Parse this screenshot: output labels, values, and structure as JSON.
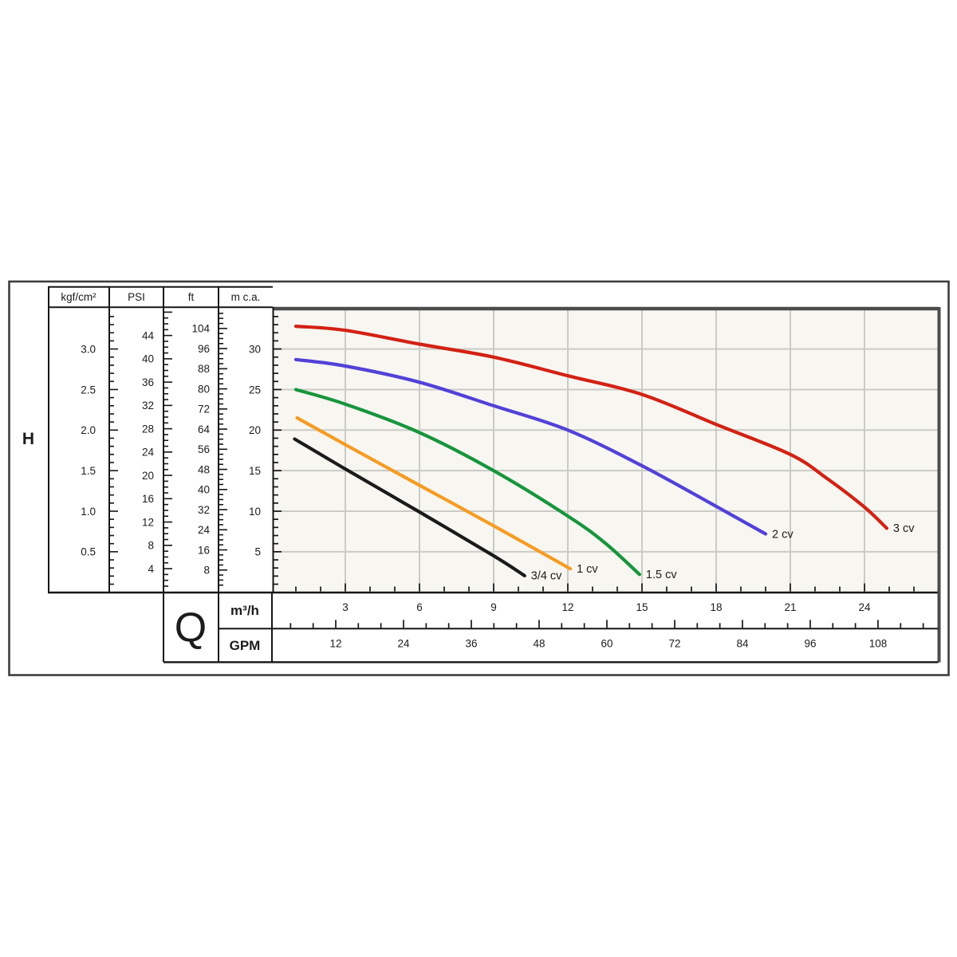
{
  "figure": {
    "head_symbol": "H",
    "flow_symbol": "Q"
  },
  "chart_data": {
    "type": "line",
    "x_axis": {
      "label": "m³/h",
      "ticks": [
        3,
        6,
        9,
        12,
        15,
        18,
        21,
        24
      ],
      "minor_step": 1,
      "range": [
        0,
        27
      ]
    },
    "x_axis_secondary": {
      "label": "GPM",
      "ticks": [
        12,
        24,
        36,
        48,
        60,
        72,
        84,
        96,
        108
      ],
      "minor_step": 4,
      "range": [
        0,
        119
      ]
    },
    "y_axis": {
      "label": "m c.a.",
      "ticks": [
        5,
        10,
        15,
        20,
        25,
        30
      ],
      "minor_step": 1,
      "range": [
        0,
        35
      ]
    },
    "grid": "on",
    "left_scales": [
      {
        "header": "kgf/cm²",
        "labels": [
          "3.0",
          "2.5",
          "2.0",
          "1.5",
          "1.0",
          "0.5"
        ],
        "minor_step": 0.1,
        "major_step": 0.5,
        "max": 3.5
      },
      {
        "header": "PSI",
        "labels": [
          44,
          40,
          36,
          32,
          28,
          24,
          20,
          16,
          12,
          8,
          4
        ],
        "minor_step": 1,
        "major_step": 4,
        "max": 50
      },
      {
        "header": "ft",
        "labels": [
          104,
          96,
          88,
          80,
          72,
          64,
          56,
          48,
          40,
          32,
          24,
          16,
          8
        ],
        "minor_step": 2,
        "major_step": 8,
        "max": 114
      },
      {
        "header": "m c.a.",
        "labels": [
          30,
          25,
          20,
          15,
          10,
          5
        ],
        "minor_step": 1,
        "major_step": 5,
        "max": 35
      }
    ],
    "series": [
      {
        "name": "3/4 cv",
        "color": "#1b1b1b",
        "points": [
          [
            0.95,
            18.9
          ],
          [
            3,
            15.2
          ],
          [
            6,
            9.9
          ],
          [
            9,
            4.5
          ],
          [
            10.25,
            2.05
          ]
        ]
      },
      {
        "name": "1 cv",
        "color": "#f59c23",
        "points": [
          [
            1.05,
            21.5
          ],
          [
            3,
            18.2
          ],
          [
            6,
            13.2
          ],
          [
            9,
            8.2
          ],
          [
            12.1,
            2.9
          ]
        ]
      },
      {
        "name": "1.5 cv",
        "color": "#17953c",
        "points": [
          [
            1,
            25.0
          ],
          [
            3,
            23.2
          ],
          [
            6,
            19.7
          ],
          [
            9,
            15.0
          ],
          [
            12,
            9.4
          ],
          [
            13.5,
            6.1
          ],
          [
            14.9,
            2.2
          ]
        ]
      },
      {
        "name": "2 cv",
        "color": "#5241d8",
        "points": [
          [
            1,
            28.7
          ],
          [
            3,
            27.9
          ],
          [
            6,
            25.9
          ],
          [
            9,
            23.0
          ],
          [
            12,
            20.0
          ],
          [
            15,
            15.6
          ],
          [
            18,
            10.6
          ],
          [
            20,
            7.2
          ]
        ]
      },
      {
        "name": "3 cv",
        "color": "#d32113",
        "points": [
          [
            1,
            32.8
          ],
          [
            3,
            32.3
          ],
          [
            6,
            30.6
          ],
          [
            9,
            29.0
          ],
          [
            12,
            26.7
          ],
          [
            15,
            24.4
          ],
          [
            18,
            20.7
          ],
          [
            21,
            17.0
          ],
          [
            22.5,
            14.0
          ],
          [
            24,
            10.5
          ],
          [
            24.9,
            7.9
          ]
        ]
      }
    ],
    "colors": {
      "gridline": "#cbcbc6",
      "plot_background": "#f7f6f1",
      "frame_dark": "#4c4c4c",
      "frame_black": "#161616",
      "text": "#1c1c1c"
    }
  }
}
